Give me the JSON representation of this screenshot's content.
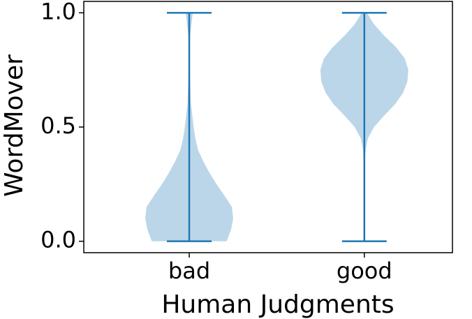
{
  "chart_data": {
    "type": "violin",
    "x_label": "Human Judgments",
    "y_label": "WordMover",
    "categories": [
      "bad",
      "good"
    ],
    "ylim": [
      -0.05,
      1.05
    ],
    "yticks": [
      {
        "value": 0,
        "label": "0.0"
      },
      {
        "value": 0.5,
        "label": "0.5"
      },
      {
        "value": 1,
        "label": "1.0"
      }
    ],
    "color": "#1f77b4",
    "density_y": [
      0,
      0.05,
      0.1,
      0.15,
      0.2,
      0.25,
      0.3,
      0.35,
      0.4,
      0.45,
      0.5,
      0.55,
      0.6,
      0.65,
      0.7,
      0.75,
      0.8,
      0.85,
      0.9,
      0.95,
      1
    ],
    "series": [
      {
        "min": 0,
        "max": 1,
        "density": [
          0.85,
          0.95,
          1.0,
          0.97,
          0.8,
          0.62,
          0.46,
          0.32,
          0.2,
          0.14,
          0.1,
          0.07,
          0.04,
          0.03,
          0.02,
          0.015,
          0.01,
          0.01,
          0.02,
          0.05,
          0.08
        ]
      },
      {
        "min": 0,
        "max": 1,
        "density": [
          0,
          0,
          0,
          0,
          0,
          0,
          0,
          0.01,
          0.03,
          0.08,
          0.22,
          0.45,
          0.7,
          0.88,
          0.98,
          1.0,
          0.92,
          0.72,
          0.45,
          0.22,
          0.06
        ]
      }
    ]
  }
}
